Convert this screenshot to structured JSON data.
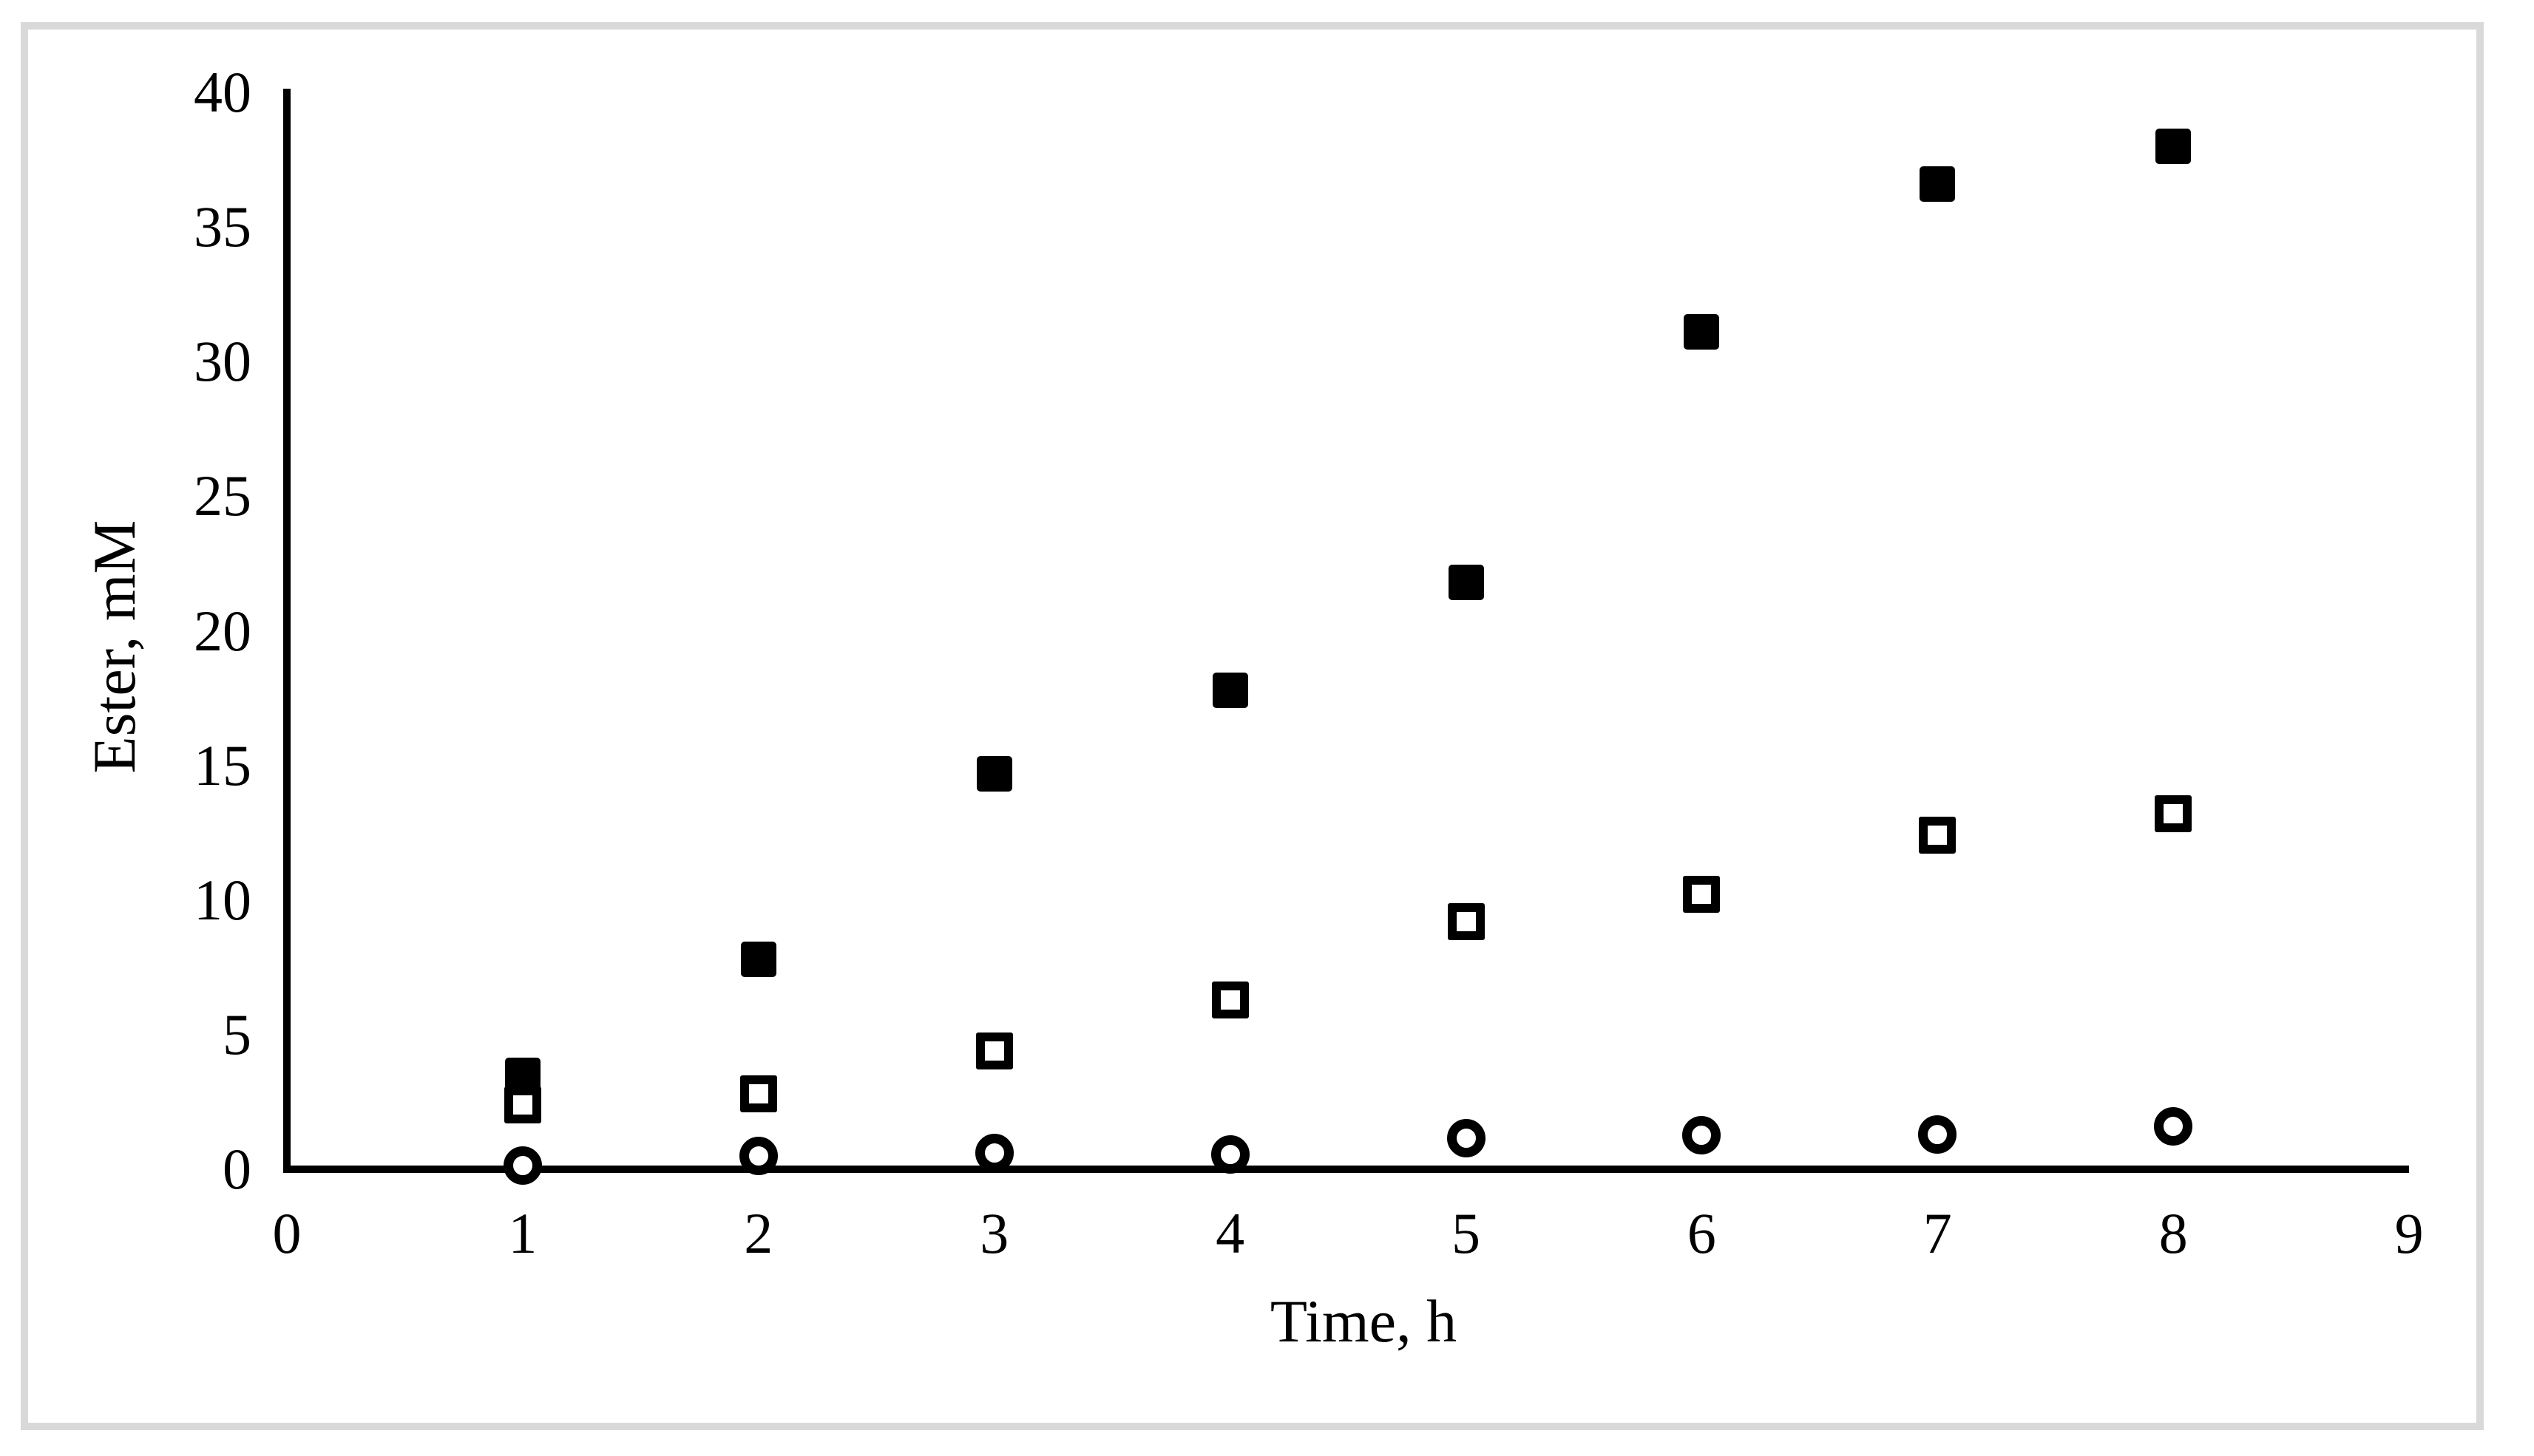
{
  "figure": {
    "background_color": "#ffffff",
    "frame_border_color": "#d9d9d9",
    "axis_color": "#000000",
    "marker_color": "#000000"
  },
  "chart_data": {
    "type": "scatter",
    "title": "",
    "xlabel": "Time, h",
    "ylabel": "Ester, mM",
    "xlim": [
      0,
      9
    ],
    "ylim": [
      0,
      40
    ],
    "x_ticks": [
      0,
      1,
      2,
      3,
      4,
      5,
      6,
      7,
      8,
      9
    ],
    "y_ticks": [
      0,
      5,
      10,
      15,
      20,
      25,
      30,
      35,
      40
    ],
    "grid": false,
    "legend": "none",
    "series": [
      {
        "name": "filled squares",
        "marker": "filled-square",
        "x": [
          1,
          2,
          3,
          4,
          5,
          6,
          7,
          8
        ],
        "y": [
          3.5,
          7.8,
          14.7,
          17.8,
          21.8,
          31.1,
          36.6,
          38.0
        ]
      },
      {
        "name": "open squares",
        "marker": "open-square",
        "x": [
          1,
          2,
          3,
          4,
          5,
          6,
          7,
          8
        ],
        "y": [
          2.4,
          2.8,
          4.4,
          6.3,
          9.2,
          10.2,
          12.4,
          13.2
        ]
      },
      {
        "name": "open circles",
        "marker": "open-circle",
        "x": [
          1,
          2,
          3,
          4,
          5,
          6,
          7,
          8
        ],
        "y": [
          0.15,
          0.5,
          0.6,
          0.55,
          1.15,
          1.25,
          1.3,
          1.6
        ]
      }
    ]
  }
}
